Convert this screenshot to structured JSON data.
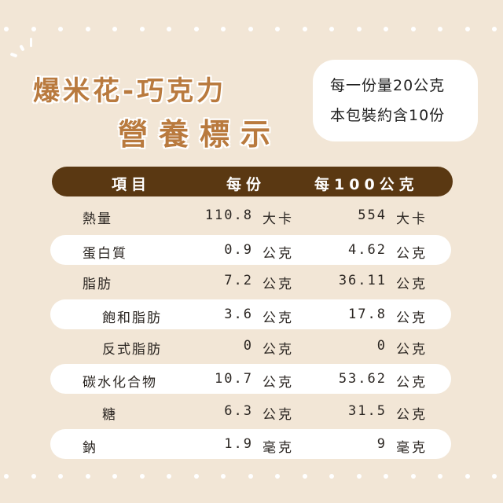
{
  "title": {
    "line1": "爆米花-巧克力",
    "line2": "營養標示"
  },
  "serving": {
    "per_serving": "每一份量20公克",
    "servings": "本包裝約含10份"
  },
  "table": {
    "headers": [
      "項目",
      "每份",
      "每100公克"
    ],
    "rows": [
      {
        "item": "熱量",
        "per_serving": "110.8",
        "per_serving_unit": "大卡",
        "per_100g": "554",
        "per_100g_unit": "大卡"
      },
      {
        "item": "蛋白質",
        "per_serving": "0.9",
        "per_serving_unit": "公克",
        "per_100g": "4.62",
        "per_100g_unit": "公克"
      },
      {
        "item": "脂肪",
        "per_serving": "7.2",
        "per_serving_unit": "公克",
        "per_100g": "36.11",
        "per_100g_unit": "公克"
      },
      {
        "item": "飽和脂肪",
        "per_serving": "3.6",
        "per_serving_unit": "公克",
        "per_100g": "17.8",
        "per_100g_unit": "公克"
      },
      {
        "item": "反式脂肪",
        "per_serving": "0",
        "per_serving_unit": "公克",
        "per_100g": "0",
        "per_100g_unit": "公克"
      },
      {
        "item": "碳水化合物",
        "per_serving": "10.7",
        "per_serving_unit": "公克",
        "per_100g": "53.62",
        "per_100g_unit": "公克"
      },
      {
        "item": "糖",
        "per_serving": "6.3",
        "per_serving_unit": "公克",
        "per_100g": "31.5",
        "per_100g_unit": "公克"
      },
      {
        "item": "鈉",
        "per_serving": "1.9",
        "per_serving_unit": "毫克",
        "per_100g": "9",
        "per_100g_unit": "毫克"
      }
    ]
  },
  "colors": {
    "background": "#f2e6d6",
    "title": "#b97a3e",
    "header_bar": "#5a3812"
  }
}
